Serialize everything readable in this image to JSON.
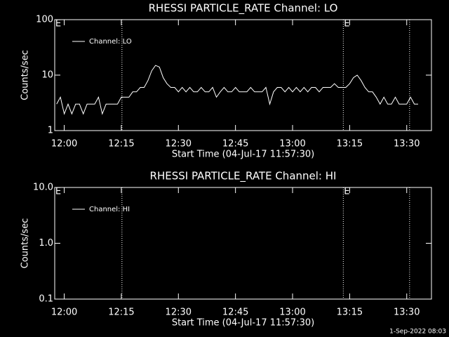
{
  "chart_data": [
    {
      "type": "line",
      "title": "RHESSI PARTICLE_RATE Channel: LO",
      "x_label": "Start Time (04-Jul-17 11:57:30)",
      "y_label": "Counts/sec",
      "log_y": true,
      "ylim": [
        1,
        100
      ],
      "yticks": [
        1,
        10,
        100
      ],
      "xlim": [
        "11:57:30",
        "13:36:30"
      ],
      "xticks": [
        "12:00",
        "12:15",
        "12:30",
        "12:45",
        "13:00",
        "13:15",
        "13:30"
      ],
      "vlines": [
        "12:15:10",
        "13:13:20",
        "13:30:45"
      ],
      "annotations": [
        {
          "x": "11:57:30",
          "label": "E"
        },
        {
          "x": "13:13:20",
          "label": "E"
        }
      ],
      "legend": "upper left",
      "x": [
        "11:58",
        "11:59",
        "12:00",
        "12:01",
        "12:02",
        "12:03",
        "12:04",
        "12:05",
        "12:06",
        "12:07",
        "12:08",
        "12:09",
        "12:10",
        "12:11",
        "12:12",
        "12:13",
        "12:14",
        "12:15",
        "12:16",
        "12:17",
        "12:18",
        "12:19",
        "12:20",
        "12:21",
        "12:22",
        "12:23",
        "12:24",
        "12:25",
        "12:26",
        "12:27",
        "12:28",
        "12:29",
        "12:30",
        "12:31",
        "12:32",
        "12:33",
        "12:34",
        "12:35",
        "12:36",
        "12:37",
        "12:38",
        "12:39",
        "12:40",
        "12:41",
        "12:42",
        "12:43",
        "12:44",
        "12:45",
        "12:46",
        "12:47",
        "12:48",
        "12:49",
        "12:50",
        "12:51",
        "12:52",
        "12:53",
        "12:54",
        "12:55",
        "12:56",
        "12:57",
        "12:58",
        "12:59",
        "13:00",
        "13:01",
        "13:02",
        "13:03",
        "13:04",
        "13:05",
        "13:06",
        "13:07",
        "13:08",
        "13:09",
        "13:10",
        "13:11",
        "13:12",
        "13:13",
        "13:14",
        "13:15",
        "13:16",
        "13:17",
        "13:18",
        "13:19",
        "13:20",
        "13:21",
        "13:22",
        "13:23",
        "13:24",
        "13:25",
        "13:26",
        "13:27",
        "13:28",
        "13:29",
        "13:30",
        "13:31",
        "13:32",
        "13:33"
      ],
      "series": [
        {
          "name": "Channel: LO",
          "color": "#ffffff",
          "values": [
            3,
            4,
            2,
            3,
            2,
            3,
            3,
            2,
            3,
            3,
            3,
            4,
            2,
            3,
            3,
            3,
            3,
            4,
            4,
            4,
            5,
            5,
            6,
            6,
            8,
            12,
            15,
            14,
            9,
            7,
            6,
            6,
            5,
            6,
            5,
            6,
            5,
            5,
            6,
            5,
            5,
            6,
            4,
            5,
            6,
            5,
            5,
            6,
            5,
            5,
            5,
            6,
            5,
            5,
            5,
            6,
            3,
            5,
            6,
            6,
            5,
            6,
            5,
            6,
            5,
            6,
            5,
            6,
            6,
            5,
            6,
            6,
            6,
            7,
            6,
            6,
            6,
            7,
            9,
            10,
            8,
            6,
            5,
            5,
            4,
            3,
            4,
            3,
            3,
            4,
            3,
            3,
            3,
            4,
            3,
            3
          ]
        }
      ]
    },
    {
      "type": "line",
      "title": "RHESSI PARTICLE_RATE Channel: HI",
      "x_label": "Start Time (04-Jul-17 11:57:30)",
      "y_label": "Counts/sec",
      "log_y": true,
      "ylim": [
        0.1,
        10
      ],
      "yticks": [
        0.1,
        {
          "value": 1,
          "label": "1.0"
        },
        {
          "value": 10,
          "label": "10.0"
        }
      ],
      "xlim": [
        "11:57:30",
        "13:36:30"
      ],
      "xticks": [
        "12:00",
        "12:15",
        "12:30",
        "12:45",
        "13:00",
        "13:15",
        "13:30"
      ],
      "vlines": [
        "12:15:10",
        "13:13:20",
        "13:30:45"
      ],
      "annotations": [
        {
          "x": "11:57:30",
          "label": "E"
        },
        {
          "x": "13:13:20",
          "label": "E"
        }
      ],
      "legend": "upper left",
      "x": [],
      "series": [
        {
          "name": "Channel: HI",
          "color": "#ffffff",
          "values": []
        }
      ]
    }
  ],
  "footer": "1-Sep-2022 08:03"
}
